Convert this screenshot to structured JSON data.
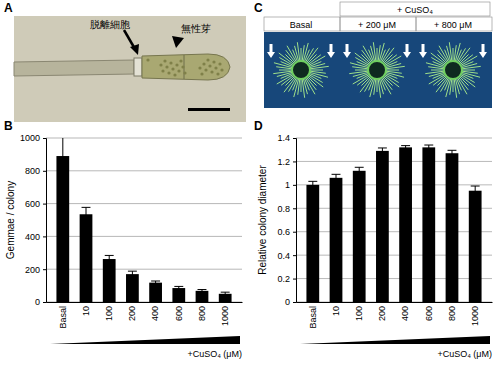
{
  "figure": {
    "panel_letters": [
      "A",
      "B",
      "C",
      "D"
    ],
    "panel_a": {
      "labels": [
        "脱離細胞",
        "無性芽"
      ]
    },
    "panel_c": {
      "treatment": "+ CuSO₄",
      "conditions": [
        "Basal",
        "+ 200 μM",
        "+ 800 μM"
      ]
    }
  },
  "chart_data": [
    {
      "type": "bar",
      "ylabel": "Gemmae / colony",
      "xlabel": "+CuSO₄ (μM)",
      "categories": [
        "Basal",
        "10",
        "100",
        "200",
        "400",
        "600",
        "800",
        "1000"
      ],
      "values": [
        890,
        535,
        262,
        170,
        118,
        85,
        68,
        50
      ],
      "errors": [
        120,
        42,
        22,
        18,
        10,
        10,
        8,
        10
      ],
      "color": "#000000",
      "ylim": [
        0,
        1000
      ],
      "yticks": [
        0,
        200,
        400,
        600,
        800,
        1000
      ],
      "grid": true
    },
    {
      "type": "bar",
      "ylabel": "Relative colony diameter",
      "xlabel": "+CuSO₄ (μM)",
      "categories": [
        "Basal",
        "10",
        "100",
        "200",
        "400",
        "600",
        "800",
        "1000"
      ],
      "values": [
        1.0,
        1.06,
        1.12,
        1.29,
        1.32,
        1.32,
        1.27,
        0.95
      ],
      "errors": [
        0.03,
        0.03,
        0.03,
        0.025,
        0.015,
        0.02,
        0.025,
        0.04
      ],
      "color": "#000000",
      "ylim": [
        0,
        1.4
      ],
      "yticks": [
        0,
        0.2,
        0.4,
        0.6,
        0.8,
        1,
        1.2,
        1.4
      ],
      "grid": true
    }
  ]
}
